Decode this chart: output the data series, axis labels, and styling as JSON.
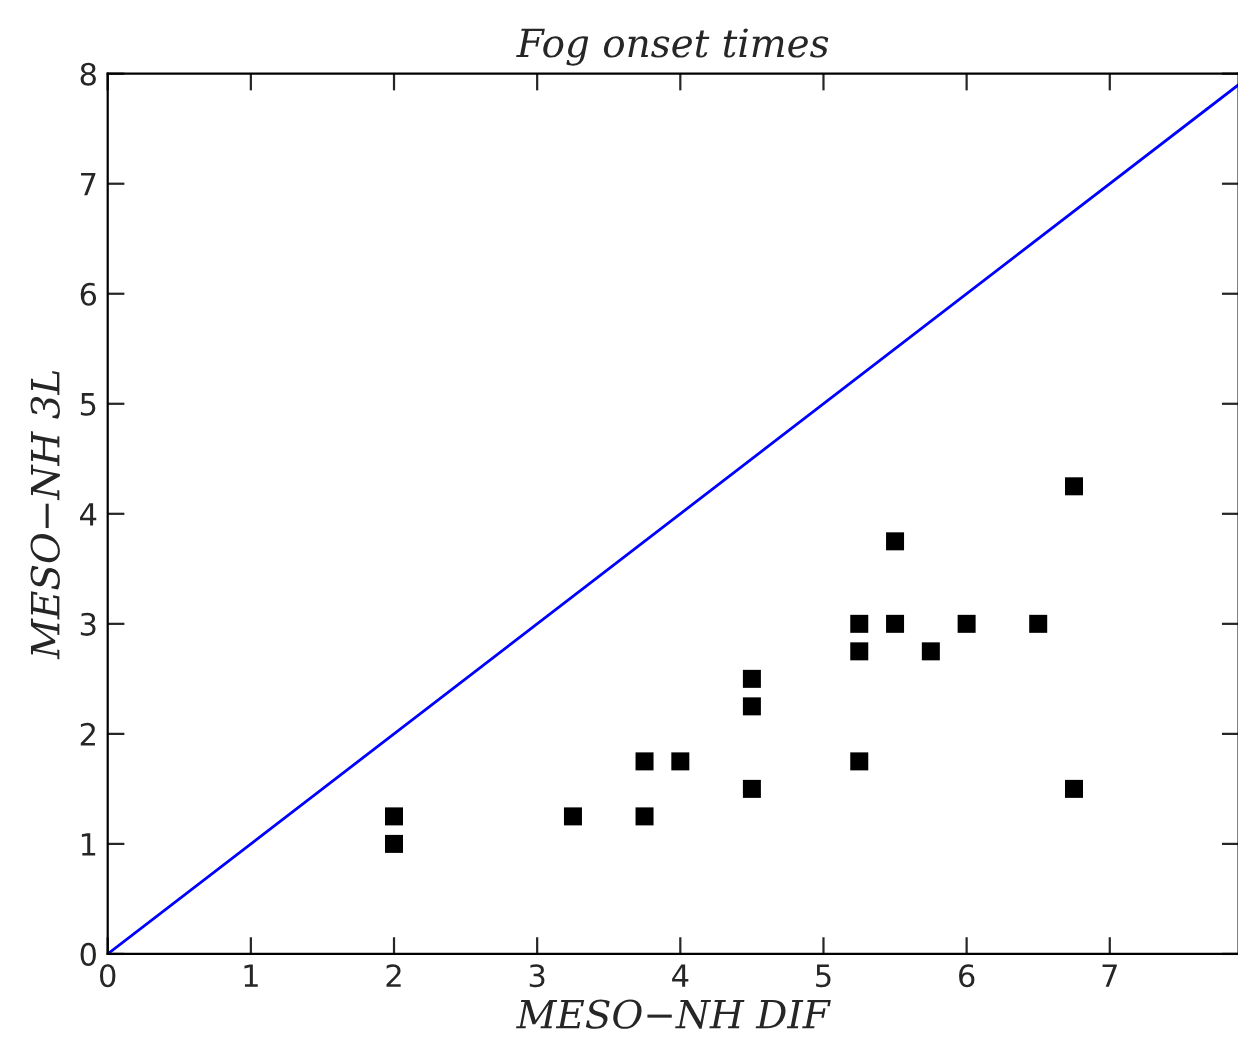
{
  "chart_data": {
    "type": "scatter",
    "title": "Fog onset times",
    "xlabel": "MESO−NH DIF",
    "ylabel": "MESO−NH 3L",
    "xlim": [
      0,
      7.9
    ],
    "ylim": [
      0,
      8
    ],
    "xticks": [
      0,
      1,
      2,
      3,
      4,
      5,
      6,
      7
    ],
    "yticks": [
      0,
      1,
      2,
      3,
      4,
      5,
      6,
      7,
      8
    ],
    "grid": false,
    "marker": "square",
    "series": [
      {
        "color": "#000000",
        "x": [
          2,
          2,
          3.25,
          3.75,
          3.75,
          4,
          4.5,
          4.5,
          4.5,
          5.25,
          5.25,
          5.25,
          5.5,
          5.5,
          5.75,
          6,
          6.5,
          6.75,
          6.75
        ],
        "values": [
          1.25,
          1.0,
          1.25,
          1.75,
          1.25,
          1.75,
          2.5,
          2.25,
          1.5,
          3,
          2.75,
          1.75,
          3.75,
          3,
          2.75,
          3,
          3,
          4.25,
          1.5
        ]
      },
      {
        "type": "line",
        "color": "#0000ff",
        "x": [
          0,
          7.9
        ],
        "values": [
          0,
          7.9
        ],
        "marker": "none",
        "line_style": "solid"
      }
    ]
  }
}
